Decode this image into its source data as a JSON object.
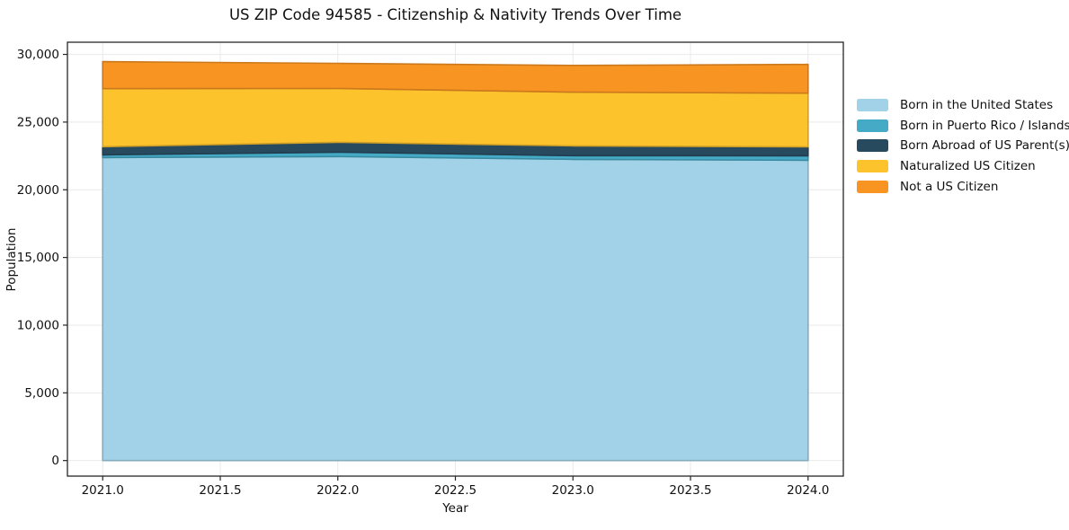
{
  "chart_data": {
    "type": "area",
    "stacked": true,
    "title": "US ZIP Code 94585 - Citizenship & Nativity Trends Over Time",
    "xlabel": "Year",
    "ylabel": "Population",
    "x": [
      2021,
      2022,
      2023,
      2024
    ],
    "series": [
      {
        "name": "Born in the United States",
        "color": "#A2D2E7",
        "values": [
          22380,
          22450,
          22250,
          22180
        ]
      },
      {
        "name": "Born in Puerto Rico / Islands",
        "color": "#45AAC6",
        "values": [
          200,
          330,
          270,
          330
        ]
      },
      {
        "name": "Born Abroad of US Parent(s)",
        "color": "#284A5F",
        "values": [
          600,
          730,
          720,
          660
        ]
      },
      {
        "name": "Naturalized US Citizen",
        "color": "#FCC32D",
        "values": [
          4290,
          3970,
          3970,
          3970
        ]
      },
      {
        "name": "Not a US Citizen",
        "color": "#F79422",
        "values": [
          2000,
          1860,
          1980,
          2120
        ]
      }
    ],
    "totals_by_year": [
      29470,
      29330,
      29190,
      29260
    ],
    "xlim": [
      2020.85,
      2024.15
    ],
    "ylim": [
      -1150,
      30900
    ],
    "x_ticks": {
      "values": [
        2021.0,
        2021.5,
        2022.0,
        2022.5,
        2023.0,
        2023.5,
        2024.0
      ],
      "labels": [
        "2021.0",
        "2021.5",
        "2022.0",
        "2022.5",
        "2023.0",
        "2023.5",
        "2024.0"
      ]
    },
    "y_ticks": {
      "values": [
        0,
        5000,
        10000,
        15000,
        20000,
        25000,
        30000
      ],
      "labels": [
        "0",
        "5,000",
        "10,000",
        "15,000",
        "20,000",
        "25,000",
        "30,000"
      ]
    },
    "grid": true,
    "grid_color": "#e9e9e9",
    "spine_color": "#262626",
    "legend_position": "outside-right"
  }
}
